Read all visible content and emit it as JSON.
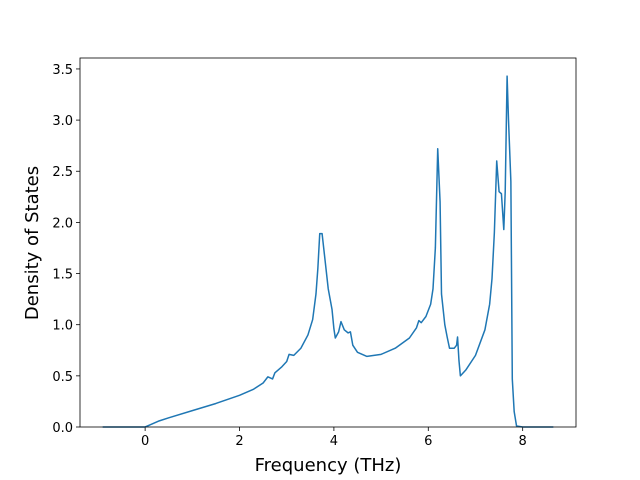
{
  "chart_data": {
    "type": "line",
    "xlabel": "Frequency (THz)",
    "ylabel": "Density of States",
    "x": [
      -0.9,
      0,
      0.1,
      0.3,
      0.5,
      1.0,
      1.5,
      2.0,
      2.3,
      2.5,
      2.6,
      2.7,
      2.75,
      2.9,
      3.0,
      3.05,
      3.15,
      3.3,
      3.45,
      3.55,
      3.62,
      3.66,
      3.7,
      3.75,
      3.82,
      3.88,
      3.96,
      4.0,
      4.03,
      4.1,
      4.15,
      4.22,
      4.3,
      4.35,
      4.4,
      4.5,
      4.7,
      5.0,
      5.3,
      5.6,
      5.75,
      5.8,
      5.85,
      5.95,
      6.05,
      6.1,
      6.15,
      6.2,
      6.25,
      6.28,
      6.35,
      6.4,
      6.45,
      6.55,
      6.6,
      6.62,
      6.65,
      6.68,
      6.8,
      7.0,
      7.2,
      7.3,
      7.35,
      7.4,
      7.45,
      7.5,
      7.55,
      7.6,
      7.63,
      7.67,
      7.7,
      7.75,
      7.78,
      7.82,
      7.87,
      8.0,
      8.65
    ],
    "series": [
      {
        "color": "#1f77b4",
        "values": [
          0,
          0,
          0.02,
          0.06,
          0.09,
          0.16,
          0.23,
          0.31,
          0.37,
          0.43,
          0.49,
          0.47,
          0.53,
          0.59,
          0.64,
          0.71,
          0.7,
          0.77,
          0.9,
          1.05,
          1.3,
          1.55,
          1.89,
          1.89,
          1.6,
          1.35,
          1.15,
          0.96,
          0.87,
          0.93,
          1.03,
          0.95,
          0.92,
          0.93,
          0.8,
          0.73,
          0.69,
          0.71,
          0.77,
          0.87,
          0.97,
          1.04,
          1.02,
          1.08,
          1.2,
          1.35,
          1.75,
          2.72,
          2.2,
          1.3,
          1.0,
          0.88,
          0.77,
          0.77,
          0.8,
          0.88,
          0.65,
          0.5,
          0.56,
          0.7,
          0.95,
          1.2,
          1.45,
          1.9,
          2.6,
          2.3,
          2.28,
          1.93,
          2.3,
          3.43,
          3.0,
          2.4,
          0.47,
          0.15,
          0.01,
          0,
          0
        ]
      }
    ],
    "xlim": [
      -1.38,
      9.13
    ],
    "ylim": [
      0,
      3.607
    ],
    "xticks": [
      0,
      2,
      4,
      6,
      8
    ],
    "yticks": [
      {
        "value": 0,
        "label": "0.0"
      },
      0.5,
      {
        "value": 1,
        "label": "1.0"
      },
      1.5,
      {
        "value": 2,
        "label": "2.0"
      },
      2.5,
      {
        "value": 3,
        "label": "3.0"
      },
      3.5
    ]
  }
}
